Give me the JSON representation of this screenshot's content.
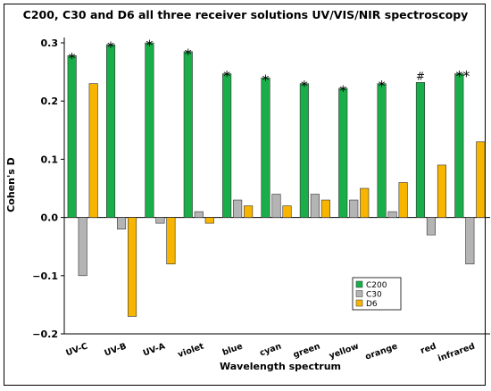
{
  "chart_data": {
    "type": "bar",
    "title": "C200, C30 and D6 all three receiver solutions UV/VIS/NIR spectroscopy",
    "xlabel": "Wavelength spectrum",
    "ylabel": "Cohen's D",
    "ylim": [
      -0.2,
      0.3
    ],
    "yticks": [
      0.3,
      0.2,
      0.1,
      0.0,
      -0.1,
      -0.2
    ],
    "ytick_labels": [
      "0.3",
      "0.2",
      "0.1",
      "0.0",
      "−0.1",
      "−0.2"
    ],
    "categories": [
      "UV-C",
      "UV-B",
      "UV-A",
      "violet",
      "blue",
      "cyan",
      "green",
      "yellow",
      "orange",
      "red",
      "infrared"
    ],
    "series": [
      {
        "name": "C200",
        "color": "#1aae4a",
        "values": [
          0.278,
          0.297,
          0.3,
          0.285,
          0.247,
          0.24,
          0.23,
          0.222,
          0.23,
          0.232,
          0.247
        ]
      },
      {
        "name": "C30",
        "color": "#b4b4b4",
        "values": [
          -0.1,
          -0.02,
          -0.01,
          0.01,
          0.03,
          0.04,
          0.04,
          0.03,
          0.01,
          -0.03,
          -0.08
        ]
      },
      {
        "name": "D6",
        "color": "#f7b500",
        "values": [
          0.23,
          -0.17,
          -0.08,
          -0.01,
          0.02,
          0.02,
          0.03,
          0.05,
          0.06,
          0.09,
          0.13
        ]
      }
    ],
    "annotations": [
      "*",
      "*",
      "*",
      "*",
      "*",
      "*",
      "*",
      "*",
      "*",
      "#",
      "**"
    ],
    "grid": false,
    "legend_position": "bottom-right"
  }
}
